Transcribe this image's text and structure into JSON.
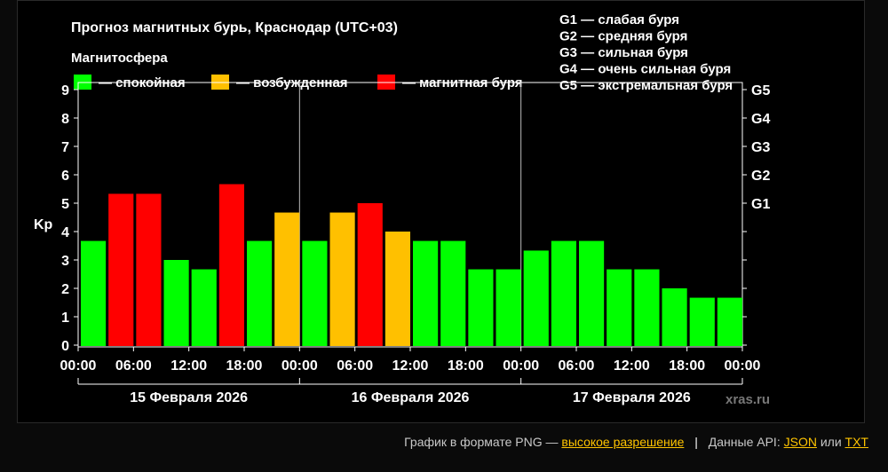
{
  "colors": {
    "quiet": "#00ff00",
    "excited": "#ffc000",
    "storm": "#ff0000",
    "background": "#000000",
    "axis": "#ffffff",
    "link": "#ffc400"
  },
  "chart_data": {
    "type": "bar",
    "title": "Прогноз магнитных бурь, Краснодар (UTC+03)",
    "legend_title": "Магнитосфера",
    "legend": [
      {
        "key": "quiet",
        "label": "— спокойная"
      },
      {
        "key": "excited",
        "label": "— возбужденная"
      },
      {
        "key": "storm",
        "label": "— магнитная буря"
      }
    ],
    "storm_scale": [
      "G1 — слабая буря",
      "G2 — средняя буря",
      "G3 — сильная буря",
      "G4 — очень сильная буря",
      "G5 — экстремальная буря"
    ],
    "ylabel": "Kp",
    "ylim": [
      0,
      9
    ],
    "y_ticks": [
      "0",
      "1",
      "2",
      "3",
      "4",
      "5",
      "6",
      "7",
      "8",
      "9"
    ],
    "right_ticks": [
      {
        "value": 5,
        "label": "G1"
      },
      {
        "value": 6,
        "label": "G2"
      },
      {
        "value": 7,
        "label": "G3"
      },
      {
        "value": 8,
        "label": "G4"
      },
      {
        "value": 9,
        "label": "G5"
      }
    ],
    "x_ticks": [
      "00:00",
      "06:00",
      "12:00",
      "18:00",
      "00:00",
      "06:00",
      "12:00",
      "18:00",
      "00:00",
      "06:00",
      "12:00",
      "18:00",
      "00:00"
    ],
    "days": [
      "15 Февраля 2026",
      "16 Февраля 2026",
      "17 Февраля 2026"
    ],
    "values": [
      3.67,
      5.33,
      5.33,
      3.0,
      2.67,
      5.67,
      3.67,
      4.67,
      3.67,
      4.67,
      5.0,
      4.0,
      3.67,
      3.67,
      2.67,
      2.67,
      3.33,
      3.67,
      3.67,
      2.67,
      2.67,
      2.0,
      1.67,
      1.67
    ],
    "levels": [
      "quiet",
      "storm",
      "storm",
      "quiet",
      "quiet",
      "storm",
      "quiet",
      "excited",
      "quiet",
      "excited",
      "storm",
      "excited",
      "quiet",
      "quiet",
      "quiet",
      "quiet",
      "quiet",
      "quiet",
      "quiet",
      "quiet",
      "quiet",
      "quiet",
      "quiet",
      "quiet"
    ],
    "watermark": "xras.ru",
    "grid": false
  },
  "footer": {
    "png_text": "График в формате PNG —",
    "hires_link": "высокое разрешение",
    "separator": "|",
    "api_text": "Данные API:",
    "json_link": "JSON",
    "or_text": "или",
    "txt_link": "TXT"
  }
}
